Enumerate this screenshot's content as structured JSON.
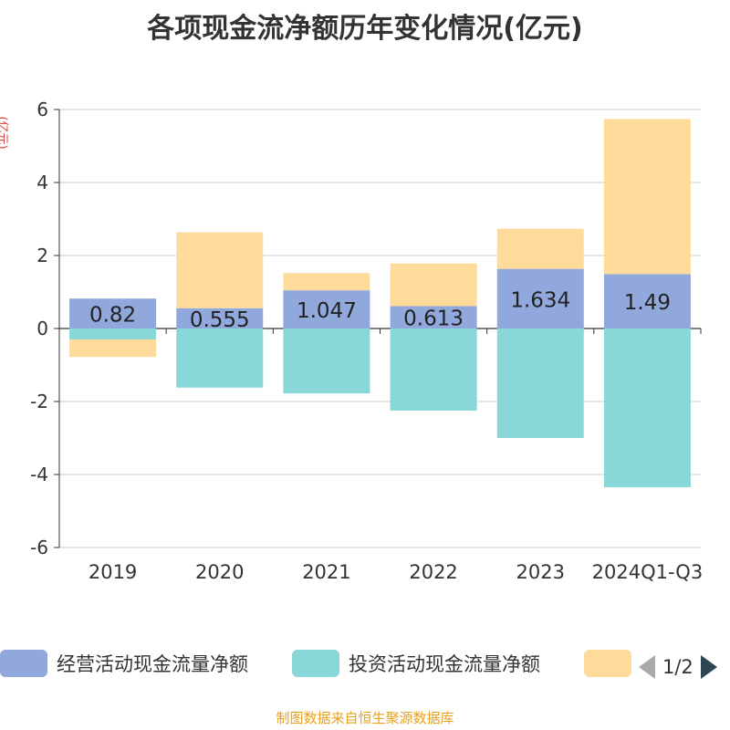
{
  "title": "各项现金流净额历年变化情况(亿元)",
  "unit_label": "(亿元)",
  "footer": "制图数据来自恒生聚源数据库",
  "legend": {
    "items": [
      {
        "label": "经营活动现金流量净额",
        "color": "#91a8dc"
      },
      {
        "label": "投资活动现金流量净额",
        "color": "#8ad7d8"
      },
      {
        "label": "",
        "color": "#fedb9b"
      }
    ],
    "page": "1/2"
  },
  "chart_data": {
    "type": "bar",
    "stacked": true,
    "categories": [
      "2019",
      "2020",
      "2021",
      "2022",
      "2023",
      "2024Q1-Q3"
    ],
    "ylim": [
      -6,
      6
    ],
    "yticks": [
      6,
      4,
      2,
      0,
      -2,
      -4,
      -6
    ],
    "grid": true,
    "series": [
      {
        "name": "经营活动现金流量净额",
        "color": "#91a8dc",
        "values": [
          0.82,
          0.555,
          1.047,
          0.613,
          1.634,
          1.49
        ],
        "labels": [
          "0.82",
          "0.555",
          "1.047",
          "0.613",
          "1.634",
          "1.49"
        ]
      },
      {
        "name": "投资活动现金流量净额",
        "color": "#8ad7d8",
        "values": [
          -0.3,
          -1.62,
          -1.78,
          -2.25,
          -3.0,
          -4.35
        ]
      },
      {
        "color": "#fedb9b",
        "values": [
          -0.48,
          2.08,
          0.47,
          1.17,
          1.1,
          4.25
        ]
      }
    ]
  }
}
